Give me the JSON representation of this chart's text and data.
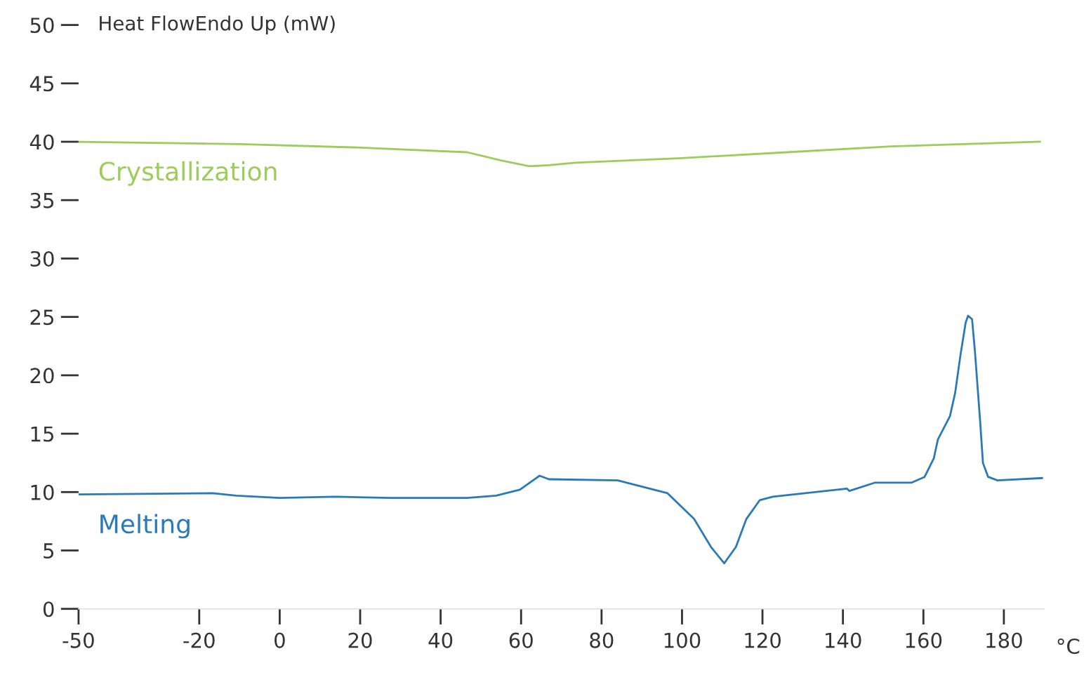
{
  "chart_data": {
    "type": "line",
    "ylabel": "Heat FlowEndo Up (mW)",
    "xlabel": "°C",
    "series": [
      {
        "name": "Crystallization",
        "color": "#9ccd5a",
        "x": [
          -50,
          -10,
          20,
          46.6,
          55,
          62,
          67,
          73.5,
          100,
          126,
          152,
          189
        ],
        "values": [
          40.0,
          39.8,
          39.5,
          39.1,
          38.4,
          37.9,
          38.0,
          38.2,
          38.6,
          39.1,
          39.6,
          40.0
        ]
      },
      {
        "name": "Melting",
        "color": "#2a7ab8",
        "x": [
          -50,
          -16.7,
          -10.8,
          0,
          14,
          27.5,
          46.6,
          53.8,
          59.7,
          64.6,
          66.9,
          84,
          96.4,
          103,
          107.2,
          110.5,
          113.4,
          116,
          119.3,
          122.6,
          141,
          141.6,
          147.9,
          157,
          160.3,
          162.6,
          163.6,
          166.6,
          167.9,
          169.2,
          170.5,
          171.1,
          172.1,
          172.8,
          174.1,
          174.8,
          176.1,
          178.4,
          189.5
        ],
        "values": [
          9.8,
          9.9,
          9.7,
          9.5,
          9.6,
          9.5,
          9.5,
          9.7,
          10.2,
          11.4,
          11.1,
          11.0,
          9.9,
          7.7,
          5.3,
          3.9,
          5.3,
          7.7,
          9.3,
          9.6,
          10.3,
          10.1,
          10.8,
          10.8,
          11.3,
          12.9,
          14.5,
          16.5,
          18.5,
          21.7,
          24.5,
          25.1,
          24.8,
          22.1,
          16.1,
          12.5,
          11.3,
          11.0,
          11.2
        ]
      }
    ],
    "xlim": [
      -50,
      190
    ],
    "ylim": [
      0,
      50
    ],
    "xticks": [
      -50,
      -20,
      0,
      20,
      40,
      60,
      80,
      100,
      120,
      140,
      160,
      180
    ],
    "yticks": [
      0,
      5,
      10,
      15,
      20,
      25,
      30,
      35,
      40,
      45,
      50
    ],
    "grid": false,
    "legend": false,
    "marker": "none",
    "line_style": "solid"
  }
}
